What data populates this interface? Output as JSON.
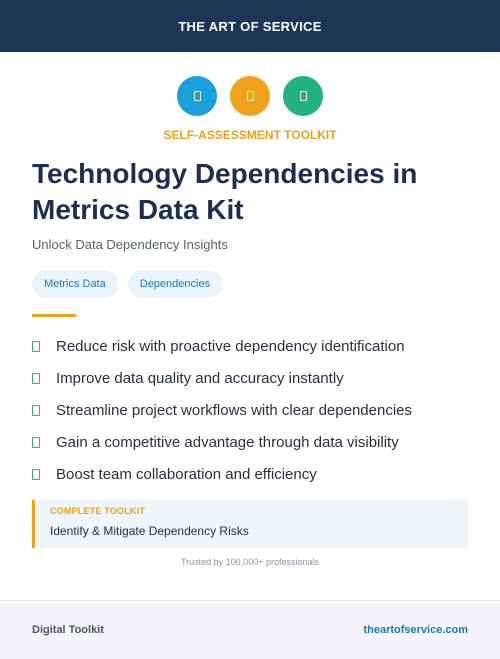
{
  "header": {
    "brand": "THE ART OF SERVICE"
  },
  "icons": [
    {
      "name": "blue-circle-icon",
      "color": "#1aa0dc"
    },
    {
      "name": "orange-circle-icon",
      "color": "#f0a21b"
    },
    {
      "name": "green-circle-icon",
      "color": "#22b27f"
    }
  ],
  "kicker": "SELF-ASSESSMENT TOOLKIT",
  "title": "Technology Dependencies in Metrics Data Kit",
  "subtitle": "Unlock Data Dependency Insights",
  "tags": [
    "Metrics Data",
    "Dependencies"
  ],
  "benefits": [
    "Reduce risk with proactive dependency identification",
    "Improve data quality and accuracy instantly",
    "Streamline project workflows with clear dependencies",
    "Gain a competitive advantage through data visibility",
    "Boost team collaboration and efficiency"
  ],
  "callout": {
    "label": "COMPLETE TOOLKIT",
    "text": "Identify & Mitigate Dependency Risks"
  },
  "trusted": "Trusted by 100,000+ professionals",
  "footer": {
    "left": "Digital Toolkit",
    "right": "theartofservice.com"
  },
  "colors": {
    "navy": "#1d3557",
    "accent": "#f0a21b",
    "link": "#1a78b8",
    "check": "#29b27a"
  }
}
